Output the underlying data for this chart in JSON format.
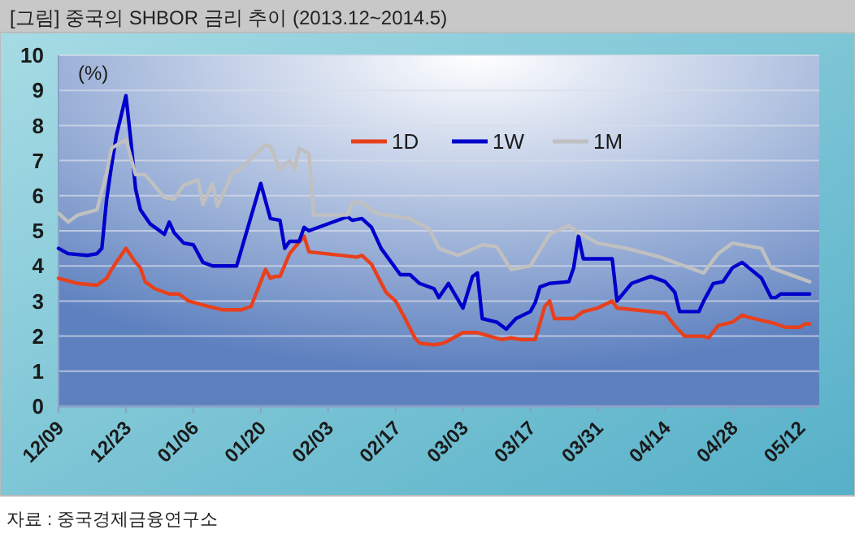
{
  "chart_data": {
    "type": "line",
    "title": "[그림] 중국의 SHBOR 금리 추이 (2013.12~2014.5)",
    "ylabel": "(%)",
    "annotations": [
      "자료 : 중국경제금융연구소"
    ],
    "xlim": [
      "2013-12-09",
      "2014-05-16"
    ],
    "xticks": [
      {
        "value": "2013-12-09",
        "label": "12/09"
      },
      {
        "value": "2013-12-23",
        "label": "12/23"
      },
      {
        "value": "2014-01-06",
        "label": "01/06"
      },
      {
        "value": "2014-01-20",
        "label": "01/20"
      },
      {
        "value": "2014-02-03",
        "label": "02/03"
      },
      {
        "value": "2014-02-17",
        "label": "02/17"
      },
      {
        "value": "2014-03-03",
        "label": "03/03"
      },
      {
        "value": "2014-03-17",
        "label": "03/17"
      },
      {
        "value": "2014-03-31",
        "label": "03/31"
      },
      {
        "value": "2014-04-14",
        "label": "04/14"
      },
      {
        "value": "2014-04-28",
        "label": "04/28"
      },
      {
        "value": "2014-05-12",
        "label": "05/12"
      }
    ],
    "ylim": [
      0,
      10
    ],
    "yticks": [
      0,
      1,
      2,
      3,
      4,
      5,
      6,
      7,
      8,
      9,
      10
    ],
    "grid": "y",
    "legend": "top",
    "marker": "none",
    "line_style": "solid",
    "series": [
      {
        "name": "1D",
        "color": "#e8401c",
        "x": [
          "2013-12-09",
          "2013-12-13",
          "2013-12-17",
          "2013-12-19",
          "2013-12-20",
          "2013-12-23",
          "2013-12-25",
          "2013-12-26",
          "2013-12-27",
          "2013-12-29",
          "2014-01-01",
          "2014-01-03",
          "2014-01-05",
          "2014-01-09",
          "2014-01-12",
          "2014-01-16",
          "2014-01-18",
          "2014-01-21",
          "2014-01-22",
          "2014-01-23",
          "2014-01-24",
          "2014-01-26",
          "2014-01-29",
          "2014-01-30",
          "2014-02-09",
          "2014-02-10",
          "2014-02-12",
          "2014-02-15",
          "2014-02-17",
          "2014-02-19",
          "2014-02-21",
          "2014-02-22",
          "2014-02-25",
          "2014-02-27",
          "2014-03-03",
          "2014-03-06",
          "2014-03-11",
          "2014-03-13",
          "2014-03-15",
          "2014-03-18",
          "2014-03-20",
          "2014-03-21",
          "2014-03-22",
          "2014-03-26",
          "2014-03-28",
          "2014-03-31",
          "2014-04-03",
          "2014-04-04",
          "2014-04-11",
          "2014-04-14",
          "2014-04-16",
          "2014-04-18",
          "2014-04-22",
          "2014-04-23",
          "2014-04-25",
          "2014-04-28",
          "2014-04-30",
          "2014-05-01",
          "2014-05-07",
          "2014-05-09",
          "2014-05-12",
          "2014-05-13",
          "2014-05-14"
        ],
        "values": [
          3.65,
          3.5,
          3.45,
          3.65,
          3.9,
          4.5,
          4.1,
          3.95,
          3.55,
          3.35,
          3.2,
          3.2,
          3.0,
          2.85,
          2.75,
          2.75,
          2.85,
          3.9,
          3.65,
          3.7,
          3.7,
          4.35,
          4.85,
          4.4,
          4.25,
          4.3,
          4.05,
          3.25,
          3.0,
          2.5,
          1.95,
          1.8,
          1.75,
          1.8,
          2.1,
          2.1,
          1.9,
          1.95,
          1.9,
          1.9,
          2.85,
          3.0,
          2.5,
          2.5,
          2.7,
          2.8,
          3.0,
          2.8,
          2.7,
          2.65,
          2.3,
          2.0,
          2.0,
          1.95,
          2.3,
          2.4,
          2.6,
          2.55,
          2.35,
          2.25,
          2.25,
          2.35,
          2.35
        ]
      },
      {
        "name": "1W",
        "color": "#0000cc",
        "x": [
          "2013-12-09",
          "2013-12-11",
          "2013-12-15",
          "2013-12-17",
          "2013-12-18",
          "2013-12-19",
          "2013-12-20",
          "2013-12-21",
          "2013-12-23",
          "2013-12-24",
          "2013-12-25",
          "2013-12-26",
          "2013-12-28",
          "2013-12-31",
          "2014-01-01",
          "2014-01-02",
          "2014-01-04",
          "2014-01-06",
          "2014-01-08",
          "2014-01-10",
          "2014-01-15",
          "2014-01-20",
          "2014-01-22",
          "2014-01-24",
          "2014-01-25",
          "2014-01-26",
          "2014-01-28",
          "2014-01-29",
          "2014-01-30",
          "2014-02-07",
          "2014-02-08",
          "2014-02-10",
          "2014-02-12",
          "2014-02-14",
          "2014-02-18",
          "2014-02-20",
          "2014-02-22",
          "2014-02-25",
          "2014-02-26",
          "2014-02-28",
          "2014-03-03",
          "2014-03-05",
          "2014-03-06",
          "2014-03-07",
          "2014-03-10",
          "2014-03-12",
          "2014-03-14",
          "2014-03-17",
          "2014-03-18",
          "2014-03-19",
          "2014-03-21",
          "2014-03-25",
          "2014-03-26",
          "2014-03-27",
          "2014-03-28",
          "2014-04-03",
          "2014-04-04",
          "2014-04-07",
          "2014-04-11",
          "2014-04-14",
          "2014-04-16",
          "2014-04-17",
          "2014-04-21",
          "2014-04-22",
          "2014-04-24",
          "2014-04-26",
          "2014-04-28",
          "2014-04-30",
          "2014-05-04",
          "2014-05-06",
          "2014-05-07",
          "2014-05-08",
          "2014-05-14"
        ],
        "values": [
          4.5,
          4.35,
          4.3,
          4.35,
          4.5,
          5.9,
          6.85,
          7.7,
          8.85,
          7.6,
          6.2,
          5.6,
          5.2,
          4.9,
          5.25,
          4.95,
          4.65,
          4.6,
          4.1,
          4.0,
          4.0,
          6.35,
          5.35,
          5.3,
          4.5,
          4.7,
          4.7,
          5.1,
          5.0,
          5.4,
          5.3,
          5.35,
          5.1,
          4.5,
          3.75,
          3.75,
          3.5,
          3.35,
          3.1,
          3.5,
          2.8,
          3.7,
          3.8,
          2.5,
          2.4,
          2.2,
          2.5,
          2.7,
          2.95,
          3.4,
          3.5,
          3.55,
          3.95,
          4.85,
          4.2,
          4.2,
          3.0,
          3.5,
          3.7,
          3.55,
          3.25,
          2.7,
          2.7,
          3.0,
          3.5,
          3.55,
          3.95,
          4.1,
          3.65,
          3.1,
          3.1,
          3.2,
          3.2
        ]
      },
      {
        "name": "1M",
        "color": "#c0c0c0",
        "x": [
          "2013-12-09",
          "2013-12-11",
          "2013-12-13",
          "2013-12-17",
          "2013-12-19",
          "2013-12-20",
          "2013-12-23",
          "2013-12-25",
          "2013-12-27",
          "2013-12-31",
          "2014-01-02",
          "2014-01-04",
          "2014-01-07",
          "2014-01-08",
          "2014-01-10",
          "2014-01-11",
          "2014-01-14",
          "2014-01-16",
          "2014-01-21",
          "2014-01-22",
          "2014-01-24",
          "2014-01-26",
          "2014-01-27",
          "2014-01-28",
          "2014-01-30",
          "2014-01-31",
          "2014-02-07",
          "2014-02-08",
          "2014-02-10",
          "2014-02-13",
          "2014-02-20",
          "2014-02-24",
          "2014-02-26",
          "2014-03-02",
          "2014-03-07",
          "2014-03-10",
          "2014-03-13",
          "2014-03-17",
          "2014-03-21",
          "2014-03-25",
          "2014-03-27",
          "2014-03-31",
          "2014-04-06",
          "2014-04-13",
          "2014-04-18",
          "2014-04-22",
          "2014-04-25",
          "2014-04-28",
          "2014-05-04",
          "2014-05-06",
          "2014-05-14"
        ],
        "values": [
          5.5,
          5.25,
          5.45,
          5.6,
          6.65,
          7.35,
          7.6,
          6.6,
          6.6,
          5.95,
          5.9,
          6.3,
          6.45,
          5.75,
          6.35,
          5.7,
          6.6,
          6.8,
          7.45,
          7.4,
          6.75,
          7.0,
          6.75,
          7.35,
          7.2,
          5.45,
          5.45,
          5.8,
          5.8,
          5.5,
          5.35,
          5.05,
          4.5,
          4.3,
          4.6,
          4.55,
          3.9,
          4.0,
          4.9,
          5.15,
          4.95,
          4.65,
          4.5,
          4.25,
          4.0,
          3.8,
          4.35,
          4.65,
          4.5,
          3.95,
          3.55
        ]
      }
    ]
  }
}
